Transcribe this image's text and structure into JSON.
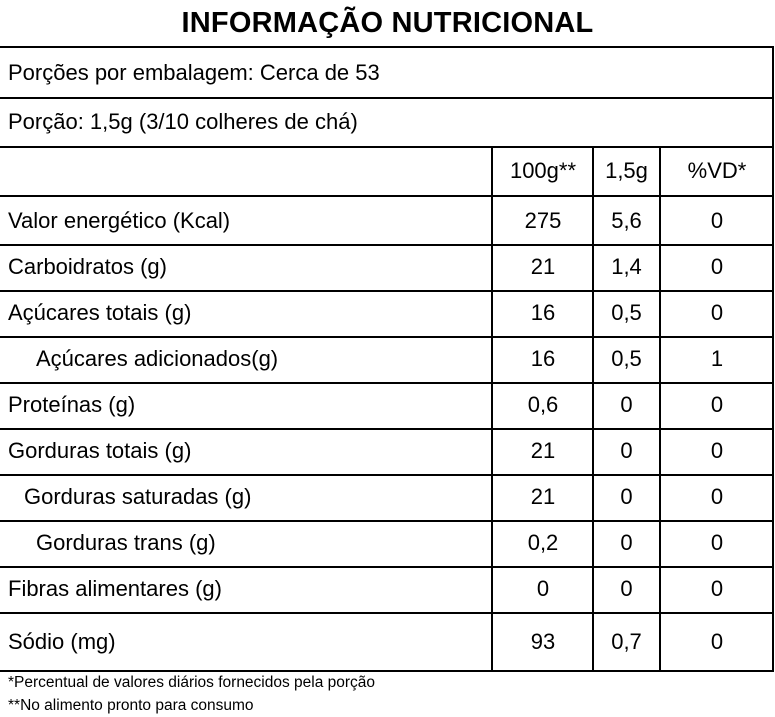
{
  "title": "INFORMAÇÃO NUTRICIONAL",
  "portions_per_package": "Porções por embalagem: Cerca de 53",
  "portion": "Porção: 1,5g (3/10 colheres de chá)",
  "columns": [
    "100g**",
    "1,5g",
    "%VD*"
  ],
  "rows": [
    {
      "label": "Valor energético (Kcal)",
      "per_100g": "275",
      "per_portion": "5,6",
      "vd": "0"
    },
    {
      "label": "Carboidratos (g)",
      "per_100g": "21",
      "per_portion": "1,4",
      "vd": "0"
    },
    {
      "label": "Açúcares totais (g)",
      "per_100g": "16",
      "per_portion": "0,5",
      "vd": "0"
    },
    {
      "label": "Açúcares adicionados(g)",
      "per_100g": "16",
      "per_portion": "0,5",
      "vd": "1"
    },
    {
      "label": "Proteínas (g)",
      "per_100g": "0,6",
      "per_portion": "0",
      "vd": "0"
    },
    {
      "label": "Gorduras totais (g)",
      "per_100g": "21",
      "per_portion": "0",
      "vd": "0"
    },
    {
      "label": "Gorduras saturadas (g)",
      "per_100g": "21",
      "per_portion": "0",
      "vd": "0"
    },
    {
      "label": "Gorduras trans (g)",
      "per_100g": "0,2",
      "per_portion": "0",
      "vd": "0"
    },
    {
      "label": "Fibras alimentares (g)",
      "per_100g": "0",
      "per_portion": "0",
      "vd": "0"
    },
    {
      "label": "Sódio (mg)",
      "per_100g": "93",
      "per_portion": "0,7",
      "vd": "0"
    }
  ],
  "footnotes": [
    "*Percentual de valores diários fornecidos pela porção",
    "**No alimento pronto para consumo"
  ]
}
